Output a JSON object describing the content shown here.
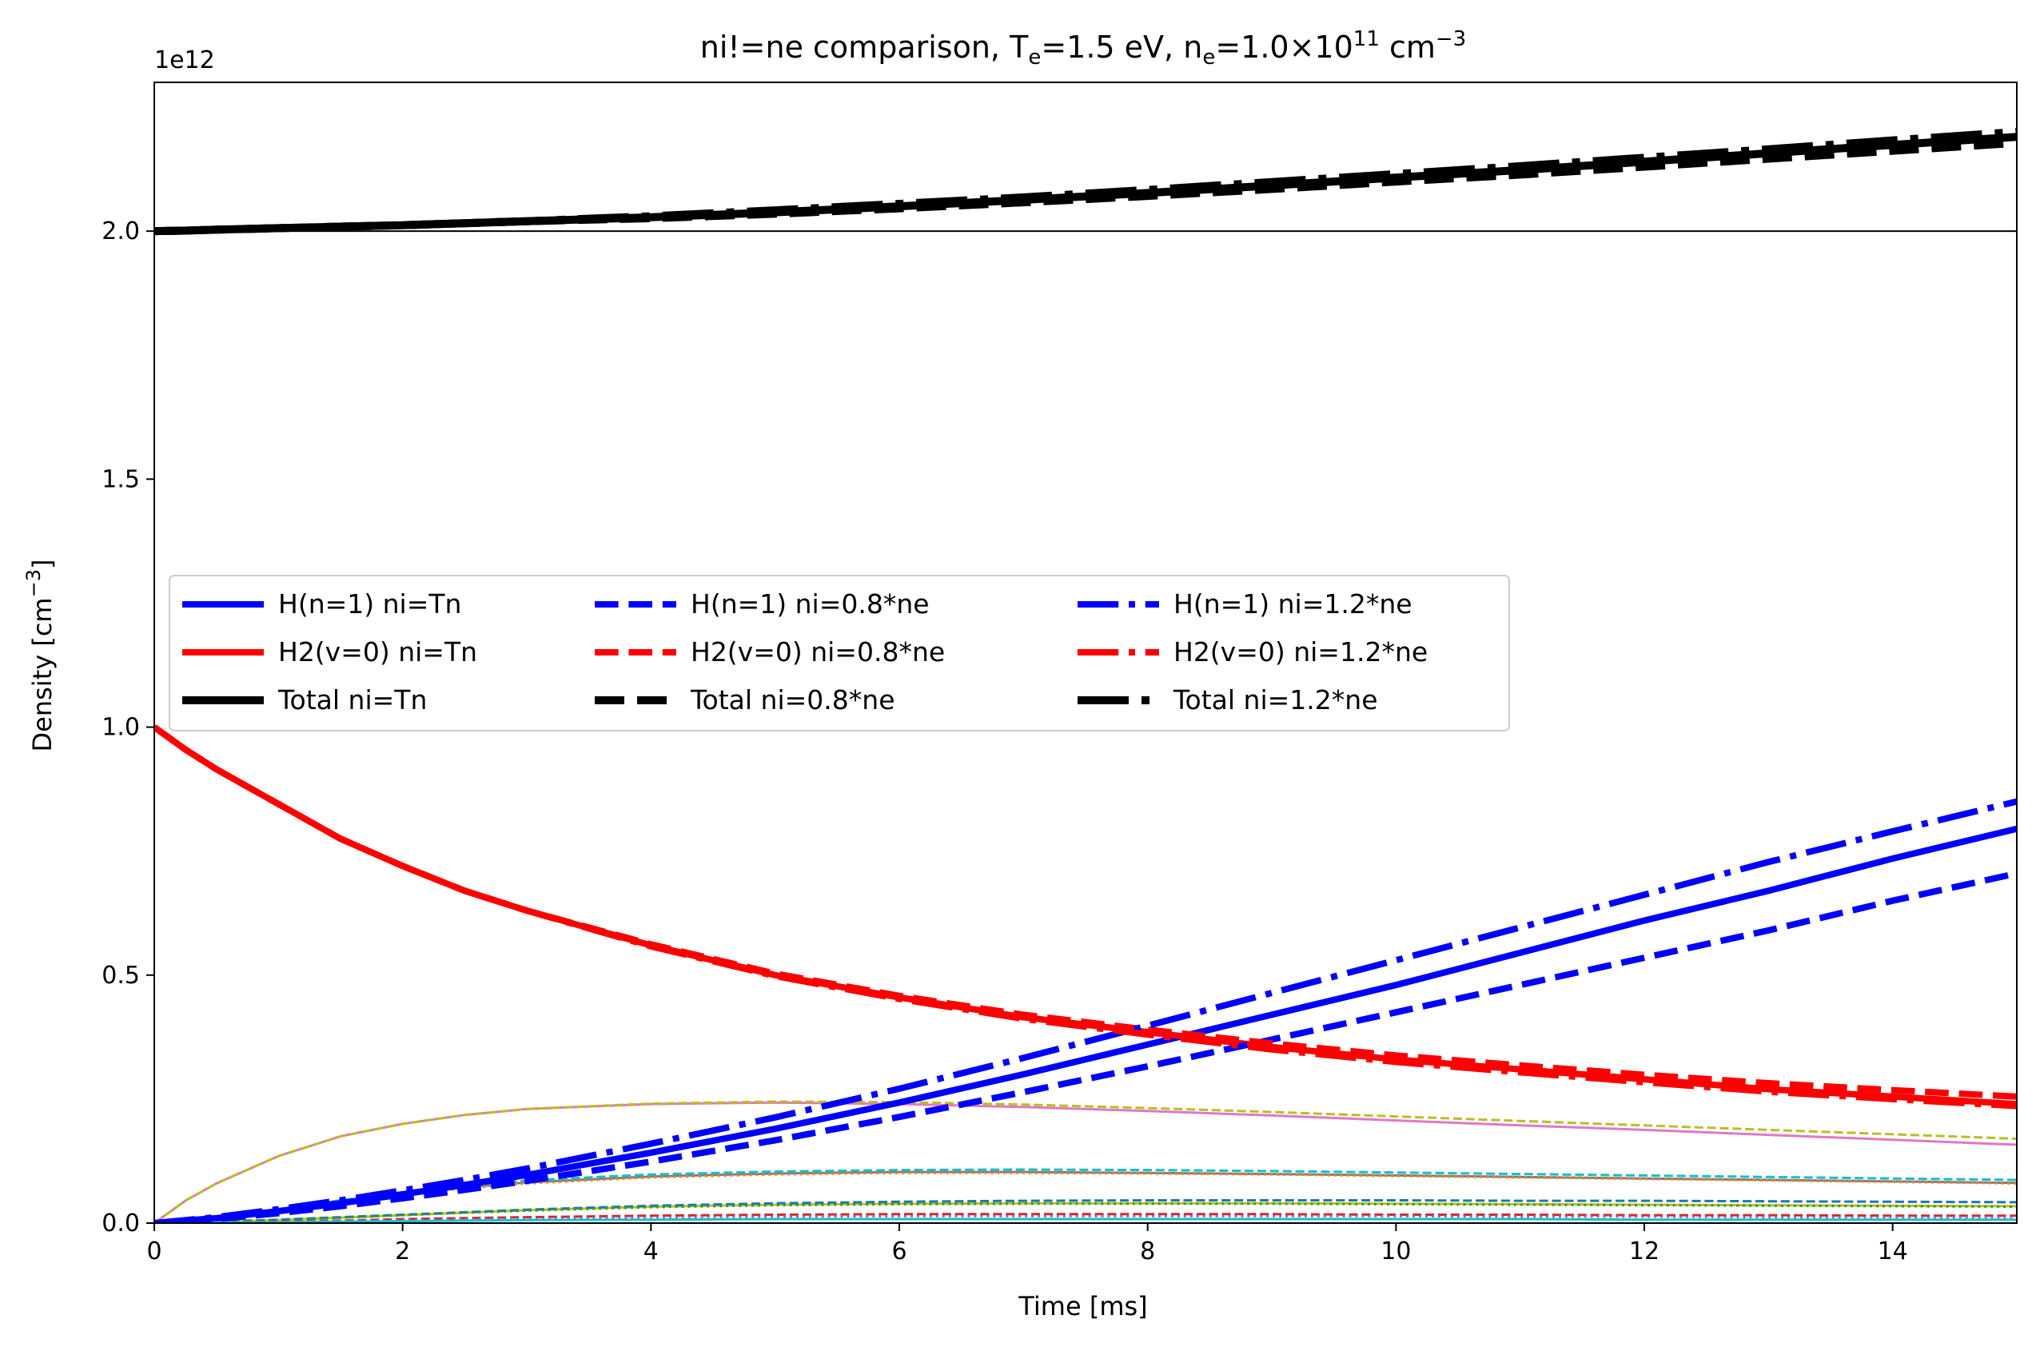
{
  "chart_data": {
    "type": "line",
    "title": {
      "main": "ni!=ne comparison,",
      "te_label": "T",
      "te_sub": "e",
      "te_value": "=1.5 eV,",
      "ne_label": "n",
      "ne_sub": "e",
      "ne_value": "=1.0×10",
      "ne_exp": "11",
      "unit": " cm",
      "unit_exp": "−3"
    },
    "xlabel": "Time [ms]",
    "ylabel": "Density [cm",
    "ylabel_exp": "−3",
    "ylabel_close": "]",
    "y_offset_text": "1e12",
    "xlim": [
      0,
      15
    ],
    "ylim": [
      0,
      2.3
    ],
    "y_scale_factor": "1e12",
    "xticks": [
      0,
      2,
      4,
      6,
      8,
      10,
      12,
      14
    ],
    "xtick_labels": [
      "0",
      "2",
      "4",
      "6",
      "8",
      "10",
      "12",
      "14"
    ],
    "yticks": [
      0,
      0.5,
      1.0,
      1.5,
      2.0
    ],
    "ytick_labels": [
      "0.0",
      "0.5",
      "1.0",
      "1.5",
      "2.0"
    ],
    "grid": false,
    "legend_placement": "center-left",
    "reference_line": {
      "y": 2.0,
      "color": "#000000"
    },
    "x": [
      0,
      0.25,
      0.5,
      1,
      1.5,
      2,
      2.5,
      3,
      4,
      5,
      6,
      7,
      8,
      9,
      10,
      11,
      12,
      13,
      14,
      15
    ],
    "series": [
      {
        "name": "H(n=1) ni=Tn",
        "color": "#0000ff",
        "dash": "solid",
        "width": 8,
        "legend": true,
        "values": [
          0,
          0.005,
          0.01,
          0.024,
          0.04,
          0.058,
          0.077,
          0.097,
          0.142,
          0.19,
          0.243,
          0.3,
          0.36,
          0.42,
          0.48,
          0.545,
          0.61,
          0.67,
          0.735,
          0.795
        ]
      },
      {
        "name": "H2(v=0) ni=Tn",
        "color": "#ff0000",
        "dash": "solid",
        "width": 8,
        "legend": true,
        "values": [
          1.0,
          0.955,
          0.915,
          0.845,
          0.775,
          0.72,
          0.67,
          0.63,
          0.56,
          0.5,
          0.455,
          0.415,
          0.385,
          0.355,
          0.33,
          0.31,
          0.29,
          0.27,
          0.255,
          0.24
        ]
      },
      {
        "name": "Total ni=Tn",
        "color": "#000000",
        "dash": "solid",
        "width": 10,
        "legend": true,
        "values": [
          2.0,
          2.001,
          2.003,
          2.006,
          2.009,
          2.012,
          2.016,
          2.02,
          2.028,
          2.038,
          2.05,
          2.063,
          2.077,
          2.092,
          2.108,
          2.123,
          2.14,
          2.157,
          2.174,
          2.19
        ]
      },
      {
        "name": "H(n=1) ni=0.8*ne",
        "color": "#0000ff",
        "dash": "dashed",
        "width": 8,
        "legend": true,
        "values": [
          0,
          0.004,
          0.008,
          0.02,
          0.034,
          0.05,
          0.067,
          0.085,
          0.124,
          0.167,
          0.214,
          0.264,
          0.316,
          0.37,
          0.425,
          0.48,
          0.535,
          0.59,
          0.65,
          0.705
        ]
      },
      {
        "name": "H2(v=0) ni=0.8*ne",
        "color": "#ff0000",
        "dash": "dashed",
        "width": 8,
        "legend": true,
        "values": [
          1.0,
          0.955,
          0.915,
          0.845,
          0.775,
          0.72,
          0.67,
          0.63,
          0.562,
          0.503,
          0.458,
          0.42,
          0.39,
          0.362,
          0.338,
          0.318,
          0.299,
          0.282,
          0.268,
          0.255
        ]
      },
      {
        "name": "Total ni=0.8*ne",
        "color": "#000000",
        "dash": "dashed",
        "width": 10,
        "legend": true,
        "values": [
          2.0,
          2.001,
          2.003,
          2.006,
          2.009,
          2.012,
          2.016,
          2.02,
          2.026,
          2.035,
          2.046,
          2.058,
          2.071,
          2.085,
          2.1,
          2.114,
          2.13,
          2.146,
          2.162,
          2.178
        ]
      },
      {
        "name": "H(n=1) ni=1.2*ne",
        "color": "#0000ff",
        "dash": "dashdot",
        "width": 8,
        "legend": true,
        "values": [
          0,
          0.006,
          0.012,
          0.028,
          0.046,
          0.066,
          0.087,
          0.11,
          0.16,
          0.213,
          0.271,
          0.333,
          0.398,
          0.464,
          0.53,
          0.596,
          0.662,
          0.728,
          0.79,
          0.85
        ]
      },
      {
        "name": "H2(v=0) ni=1.2*ne",
        "color": "#ff0000",
        "dash": "dashdot",
        "width": 8,
        "legend": true,
        "values": [
          1.0,
          0.955,
          0.915,
          0.845,
          0.775,
          0.72,
          0.67,
          0.63,
          0.558,
          0.498,
          0.452,
          0.412,
          0.38,
          0.35,
          0.325,
          0.304,
          0.284,
          0.265,
          0.25,
          0.236
        ]
      },
      {
        "name": "Total ni=1.2*ne",
        "color": "#000000",
        "dash": "dashdot",
        "width": 10,
        "legend": true,
        "values": [
          2.0,
          2.001,
          2.003,
          2.006,
          2.009,
          2.012,
          2.016,
          2.02,
          2.03,
          2.042,
          2.055,
          2.068,
          2.083,
          2.099,
          2.115,
          2.131,
          2.148,
          2.165,
          2.183,
          2.2
        ]
      },
      {
        "name": "",
        "color": "#e377c2",
        "dash": "solid",
        "width": 3,
        "legend": false,
        "values": [
          0,
          0.045,
          0.08,
          0.135,
          0.175,
          0.2,
          0.218,
          0.23,
          0.24,
          0.243,
          0.24,
          0.234,
          0.226,
          0.217,
          0.207,
          0.197,
          0.188,
          0.178,
          0.168,
          0.158
        ]
      },
      {
        "name": "",
        "color": "#bcbd22",
        "dash": "dashed",
        "width": 3,
        "legend": false,
        "values": [
          0,
          0.045,
          0.08,
          0.135,
          0.175,
          0.2,
          0.218,
          0.23,
          0.241,
          0.245,
          0.244,
          0.239,
          0.232,
          0.224,
          0.215,
          0.206,
          0.197,
          0.188,
          0.179,
          0.17
        ]
      },
      {
        "name": "",
        "color": "#7f7f7f",
        "dash": "solid",
        "width": 3,
        "legend": false,
        "values": [
          0,
          0.006,
          0.012,
          0.028,
          0.045,
          0.06,
          0.072,
          0.082,
          0.094,
          0.1,
          0.103,
          0.103,
          0.101,
          0.099,
          0.096,
          0.093,
          0.09,
          0.087,
          0.084,
          0.081
        ]
      },
      {
        "name": "",
        "color": "#17becf",
        "dash": "dashed",
        "width": 3,
        "legend": false,
        "values": [
          0,
          0.006,
          0.012,
          0.028,
          0.046,
          0.062,
          0.075,
          0.086,
          0.098,
          0.104,
          0.107,
          0.108,
          0.107,
          0.105,
          0.102,
          0.099,
          0.096,
          0.093,
          0.09,
          0.087
        ]
      },
      {
        "name": "",
        "color": "#ff7f0e",
        "dash": "dotted",
        "width": 3,
        "legend": false,
        "values": [
          0,
          0.005,
          0.011,
          0.026,
          0.043,
          0.058,
          0.07,
          0.08,
          0.092,
          0.098,
          0.101,
          0.101,
          0.1,
          0.098,
          0.095,
          0.092,
          0.089,
          0.086,
          0.083,
          0.08
        ]
      },
      {
        "name": "",
        "color": "#bcbd22",
        "dash": "solid",
        "width": 3,
        "legend": false,
        "values": [
          0,
          0.001,
          0.002,
          0.006,
          0.011,
          0.016,
          0.021,
          0.026,
          0.033,
          0.037,
          0.039,
          0.04,
          0.04,
          0.04,
          0.039,
          0.038,
          0.037,
          0.036,
          0.035,
          0.034
        ]
      },
      {
        "name": "",
        "color": "#1f77b4",
        "dash": "dashed",
        "width": 3,
        "legend": false,
        "values": [
          0,
          0.001,
          0.003,
          0.007,
          0.012,
          0.017,
          0.022,
          0.027,
          0.035,
          0.04,
          0.043,
          0.045,
          0.046,
          0.046,
          0.046,
          0.045,
          0.045,
          0.044,
          0.043,
          0.042
        ]
      },
      {
        "name": "",
        "color": "#2ca02c",
        "dash": "dotted",
        "width": 3,
        "legend": false,
        "values": [
          0,
          0.001,
          0.002,
          0.006,
          0.011,
          0.016,
          0.021,
          0.025,
          0.032,
          0.036,
          0.038,
          0.039,
          0.039,
          0.039,
          0.038,
          0.037,
          0.036,
          0.035,
          0.034,
          0.033
        ]
      },
      {
        "name": "",
        "color": "#d62728",
        "dash": "dashed",
        "width": 3,
        "legend": false,
        "values": [
          0,
          0.001,
          0.001,
          0.003,
          0.005,
          0.008,
          0.01,
          0.012,
          0.015,
          0.017,
          0.018,
          0.018,
          0.018,
          0.018,
          0.017,
          0.017,
          0.016,
          0.016,
          0.015,
          0.015
        ]
      },
      {
        "name": "",
        "color": "#9467bd",
        "dash": "dotted",
        "width": 3,
        "legend": false,
        "values": [
          0,
          0.0005,
          0.001,
          0.002,
          0.004,
          0.006,
          0.008,
          0.009,
          0.012,
          0.013,
          0.014,
          0.014,
          0.014,
          0.014,
          0.014,
          0.013,
          0.013,
          0.012,
          0.012,
          0.012
        ]
      },
      {
        "name": "",
        "color": "#17becf",
        "dash": "solid",
        "width": 3,
        "legend": false,
        "values": [
          0,
          0.0003,
          0.0006,
          0.0015,
          0.003,
          0.004,
          0.005,
          0.006,
          0.007,
          0.008,
          0.008,
          0.008,
          0.008,
          0.008,
          0.008,
          0.008,
          0.007,
          0.007,
          0.007,
          0.007
        ]
      }
    ]
  }
}
